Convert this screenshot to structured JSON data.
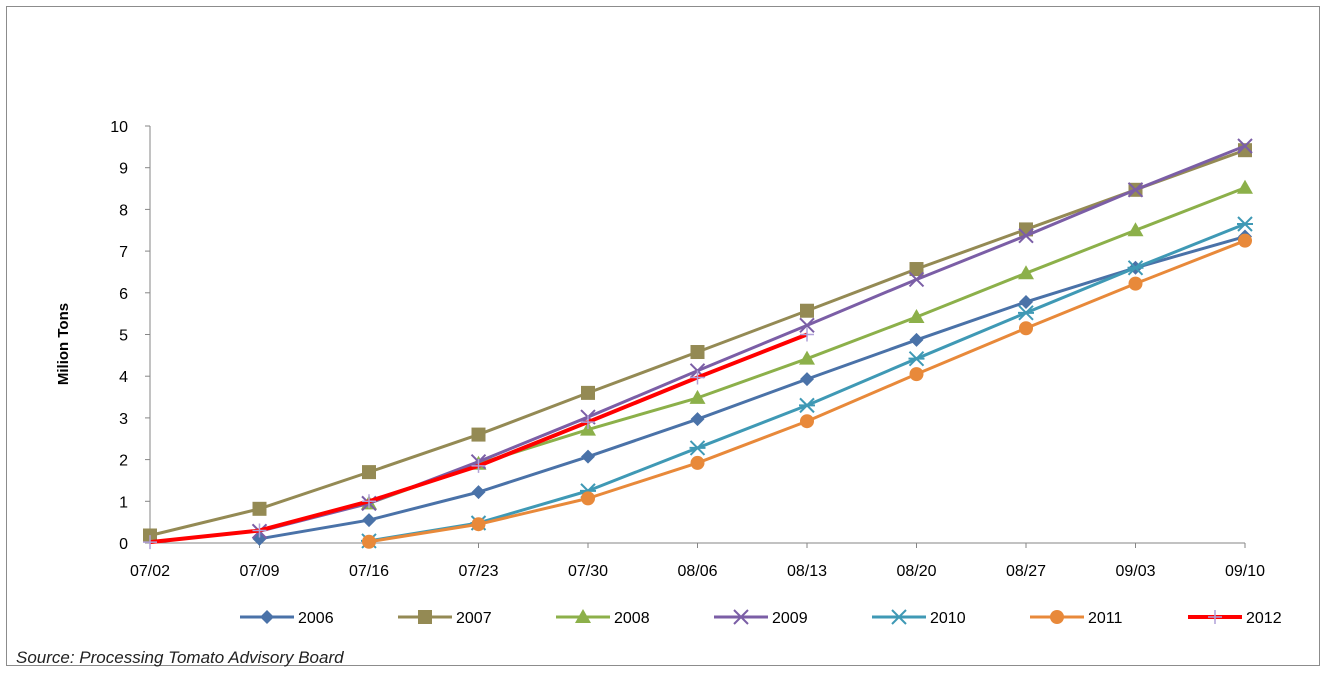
{
  "chart_data": {
    "type": "line",
    "ylabel": "Milion Tons",
    "xlabel": "",
    "ylim": [
      0,
      10
    ],
    "yticks": [
      0,
      1,
      2,
      3,
      4,
      5,
      6,
      7,
      8,
      9,
      10
    ],
    "categories": [
      "07/02",
      "07/09",
      "07/16",
      "07/23",
      "07/30",
      "08/06",
      "08/13",
      "08/20",
      "08/27",
      "09/03",
      "09/10"
    ],
    "grid": false,
    "legend_position": "bottom",
    "series": [
      {
        "name": "2006",
        "color": "#4a72a8",
        "marker": "diamond",
        "values": [
          null,
          0.1,
          0.55,
          1.22,
          2.07,
          2.97,
          3.93,
          4.87,
          5.78,
          6.6,
          7.35
        ]
      },
      {
        "name": "2007",
        "color": "#948a54",
        "marker": "square",
        "values": [
          0.18,
          0.82,
          1.7,
          2.6,
          3.6,
          4.58,
          5.57,
          6.57,
          7.52,
          8.47,
          9.42
        ]
      },
      {
        "name": "2008",
        "color": "#8cb04a",
        "marker": "triangle",
        "values": [
          null,
          null,
          0.95,
          1.9,
          2.72,
          3.48,
          4.42,
          5.42,
          6.47,
          7.5,
          8.52
        ]
      },
      {
        "name": "2009",
        "color": "#7b5ea6",
        "marker": "x",
        "values": [
          null,
          0.28,
          0.95,
          1.95,
          3.02,
          4.13,
          5.22,
          6.32,
          7.37,
          8.47,
          9.52
        ]
      },
      {
        "name": "2010",
        "color": "#3f99b5",
        "marker": "star",
        "values": [
          null,
          null,
          0.05,
          0.48,
          1.25,
          2.28,
          3.3,
          4.42,
          5.52,
          6.6,
          7.65
        ]
      },
      {
        "name": "2011",
        "color": "#e8893a",
        "marker": "circle",
        "values": [
          null,
          null,
          0.03,
          0.45,
          1.07,
          1.92,
          2.92,
          4.05,
          5.15,
          6.22,
          7.25
        ]
      },
      {
        "name": "2012",
        "color": "#ff0000",
        "marker": "plus",
        "values": [
          0.02,
          0.3,
          1.0,
          1.85,
          2.9,
          3.97,
          5.0,
          null,
          null,
          null,
          null
        ]
      }
    ]
  },
  "source": "Source: Processing Tomato Advisory Board"
}
